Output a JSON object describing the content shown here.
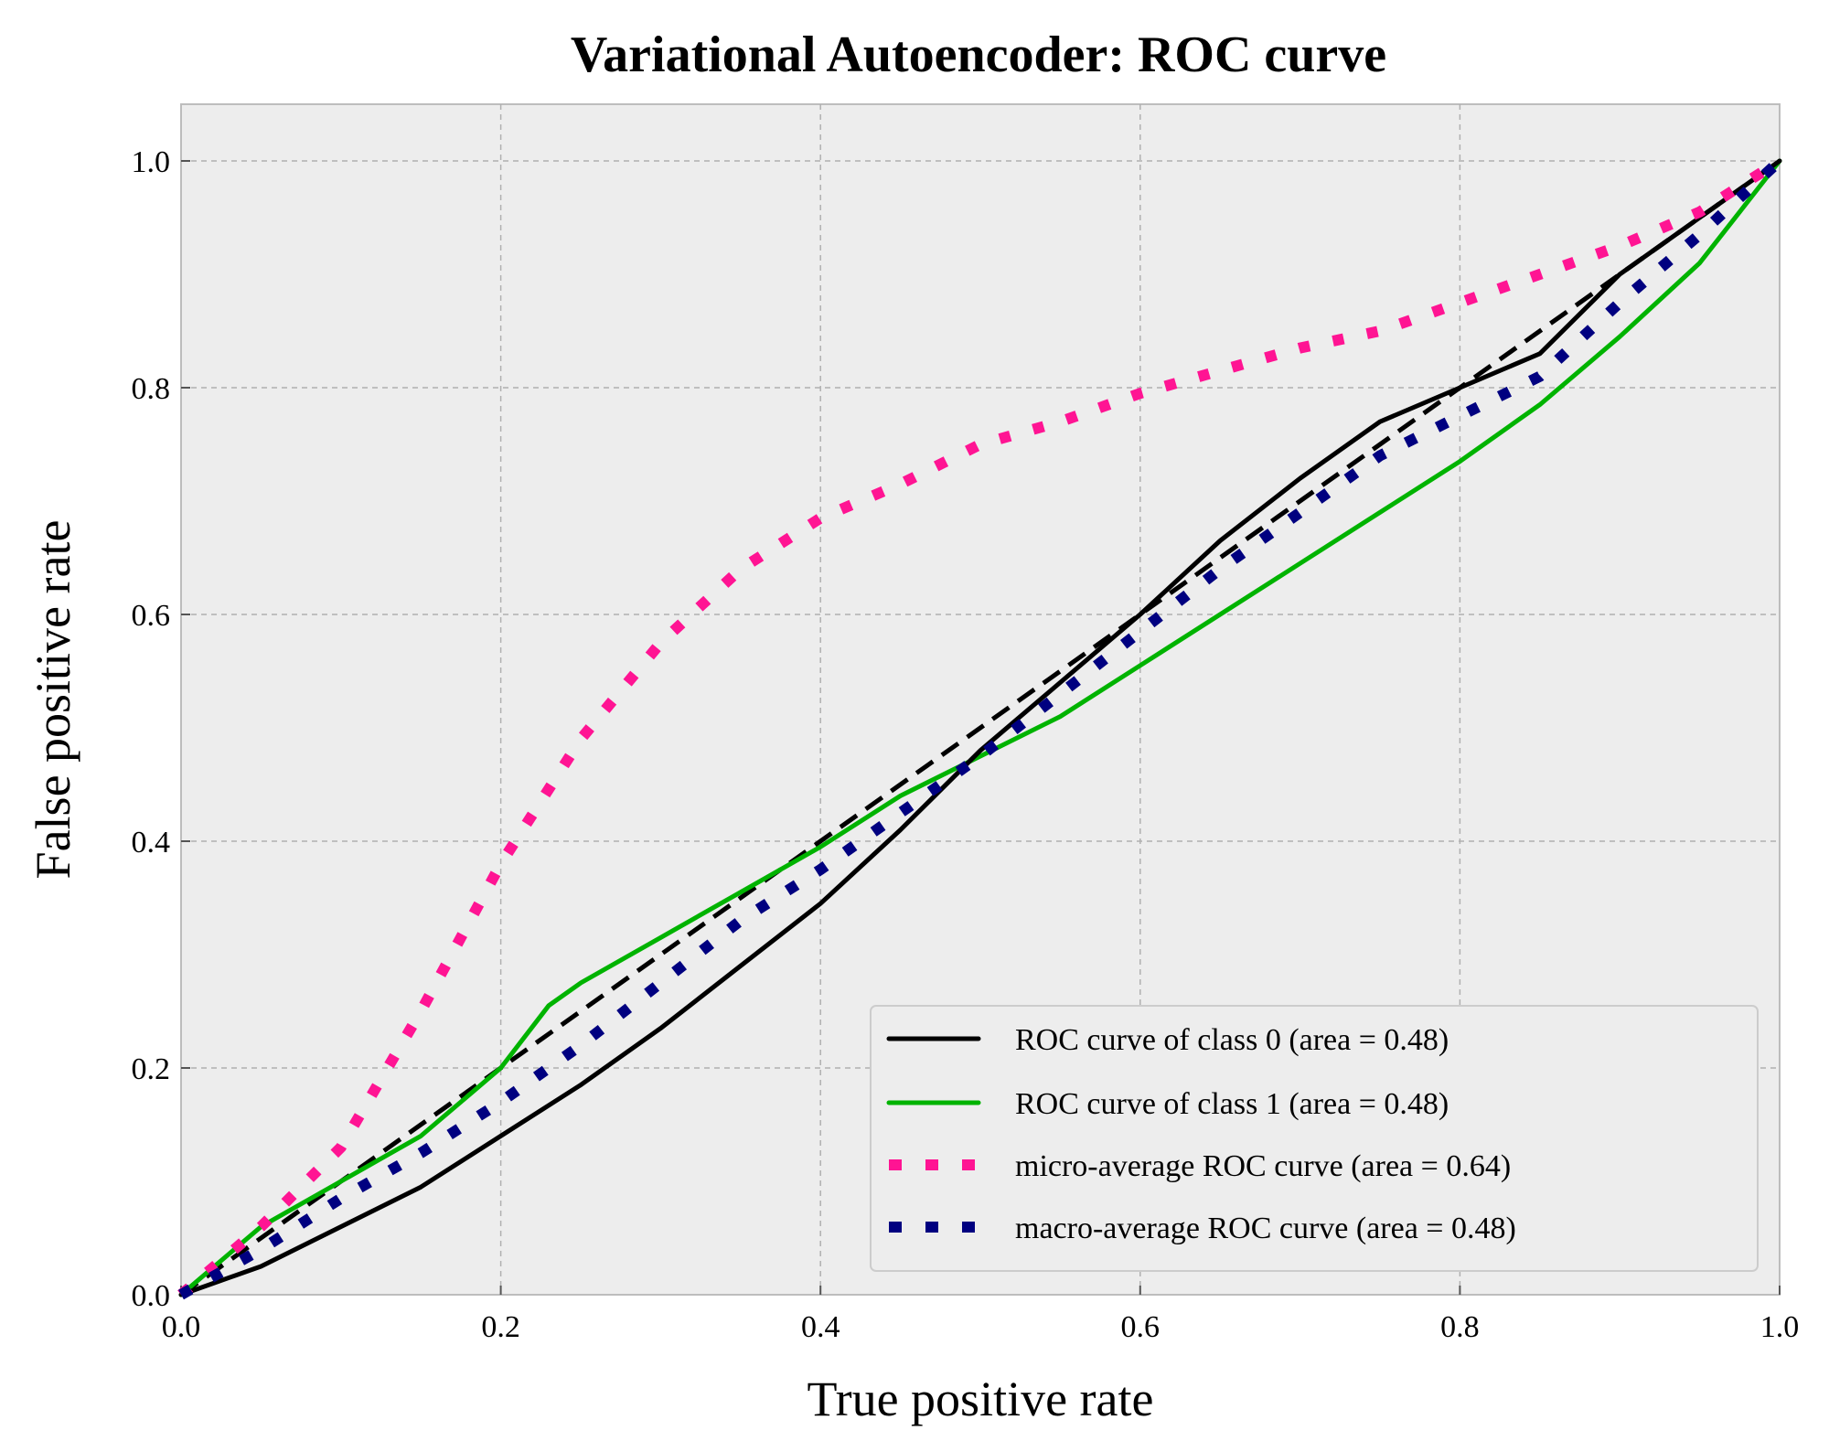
{
  "chart_data": {
    "type": "line",
    "title": "Variational Autoencoder: ROC curve",
    "xlabel": "True positive rate",
    "ylabel": "False positive rate",
    "xlim": [
      0.0,
      1.0
    ],
    "ylim": [
      0.0,
      1.05
    ],
    "xticks": [
      "0.0",
      "0.2",
      "0.4",
      "0.6",
      "0.8",
      "1.0"
    ],
    "yticks": [
      "0.0",
      "0.2",
      "0.4",
      "0.6",
      "0.8",
      "1.0"
    ],
    "grid": true,
    "legend_position": "lower-right",
    "colors": {
      "plot_background": "#ededed",
      "grid": "#b0b0b0",
      "class0": "#000000",
      "class1": "#00b300",
      "micro": "#ff1493",
      "macro": "#000080",
      "diagonal": "#000000"
    },
    "series": [
      {
        "name": "ROC curve of class 0 (area = 0.48)",
        "style": "solid",
        "points": [
          [
            0,
            0
          ],
          [
            0.05,
            0.025
          ],
          [
            0.1,
            0.06
          ],
          [
            0.15,
            0.095
          ],
          [
            0.2,
            0.14
          ],
          [
            0.25,
            0.185
          ],
          [
            0.3,
            0.235
          ],
          [
            0.35,
            0.29
          ],
          [
            0.4,
            0.345
          ],
          [
            0.45,
            0.41
          ],
          [
            0.5,
            0.48
          ],
          [
            0.55,
            0.54
          ],
          [
            0.6,
            0.6
          ],
          [
            0.65,
            0.665
          ],
          [
            0.7,
            0.72
          ],
          [
            0.75,
            0.77
          ],
          [
            0.8,
            0.8
          ],
          [
            0.85,
            0.83
          ],
          [
            0.9,
            0.9
          ],
          [
            0.95,
            0.95
          ],
          [
            1,
            1
          ]
        ]
      },
      {
        "name": "ROC curve of class 1 (area = 0.48)",
        "style": "solid",
        "points": [
          [
            0,
            0
          ],
          [
            0.05,
            0.06
          ],
          [
            0.1,
            0.1
          ],
          [
            0.15,
            0.14
          ],
          [
            0.2,
            0.2
          ],
          [
            0.23,
            0.255
          ],
          [
            0.25,
            0.275
          ],
          [
            0.3,
            0.315
          ],
          [
            0.35,
            0.355
          ],
          [
            0.4,
            0.395
          ],
          [
            0.45,
            0.44
          ],
          [
            0.5,
            0.475
          ],
          [
            0.55,
            0.51
          ],
          [
            0.6,
            0.555
          ],
          [
            0.65,
            0.6
          ],
          [
            0.7,
            0.645
          ],
          [
            0.75,
            0.69
          ],
          [
            0.8,
            0.735
          ],
          [
            0.85,
            0.785
          ],
          [
            0.9,
            0.845
          ],
          [
            0.95,
            0.91
          ],
          [
            1,
            1
          ]
        ]
      },
      {
        "name": "micro-average ROC curve (area = 0.64)",
        "style": "dotted",
        "points": [
          [
            0,
            0
          ],
          [
            0.05,
            0.06
          ],
          [
            0.1,
            0.13
          ],
          [
            0.15,
            0.25
          ],
          [
            0.2,
            0.38
          ],
          [
            0.25,
            0.49
          ],
          [
            0.3,
            0.575
          ],
          [
            0.35,
            0.64
          ],
          [
            0.4,
            0.685
          ],
          [
            0.45,
            0.715
          ],
          [
            0.5,
            0.75
          ],
          [
            0.55,
            0.77
          ],
          [
            0.6,
            0.795
          ],
          [
            0.65,
            0.815
          ],
          [
            0.7,
            0.835
          ],
          [
            0.75,
            0.85
          ],
          [
            0.8,
            0.875
          ],
          [
            0.85,
            0.9
          ],
          [
            0.9,
            0.925
          ],
          [
            0.95,
            0.955
          ],
          [
            1,
            1
          ]
        ]
      },
      {
        "name": "macro-average ROC curve (area = 0.48)",
        "style": "dotted",
        "points": [
          [
            0,
            0
          ],
          [
            0.05,
            0.04
          ],
          [
            0.1,
            0.085
          ],
          [
            0.15,
            0.125
          ],
          [
            0.2,
            0.17
          ],
          [
            0.25,
            0.22
          ],
          [
            0.3,
            0.275
          ],
          [
            0.35,
            0.33
          ],
          [
            0.4,
            0.375
          ],
          [
            0.45,
            0.425
          ],
          [
            0.5,
            0.475
          ],
          [
            0.55,
            0.53
          ],
          [
            0.6,
            0.585
          ],
          [
            0.65,
            0.64
          ],
          [
            0.7,
            0.69
          ],
          [
            0.75,
            0.74
          ],
          [
            0.8,
            0.775
          ],
          [
            0.85,
            0.81
          ],
          [
            0.9,
            0.875
          ],
          [
            0.95,
            0.935
          ],
          [
            1,
            1
          ]
        ]
      }
    ],
    "reference_line": {
      "style": "dashed",
      "points": [
        [
          0,
          0
        ],
        [
          1,
          1
        ]
      ]
    }
  }
}
